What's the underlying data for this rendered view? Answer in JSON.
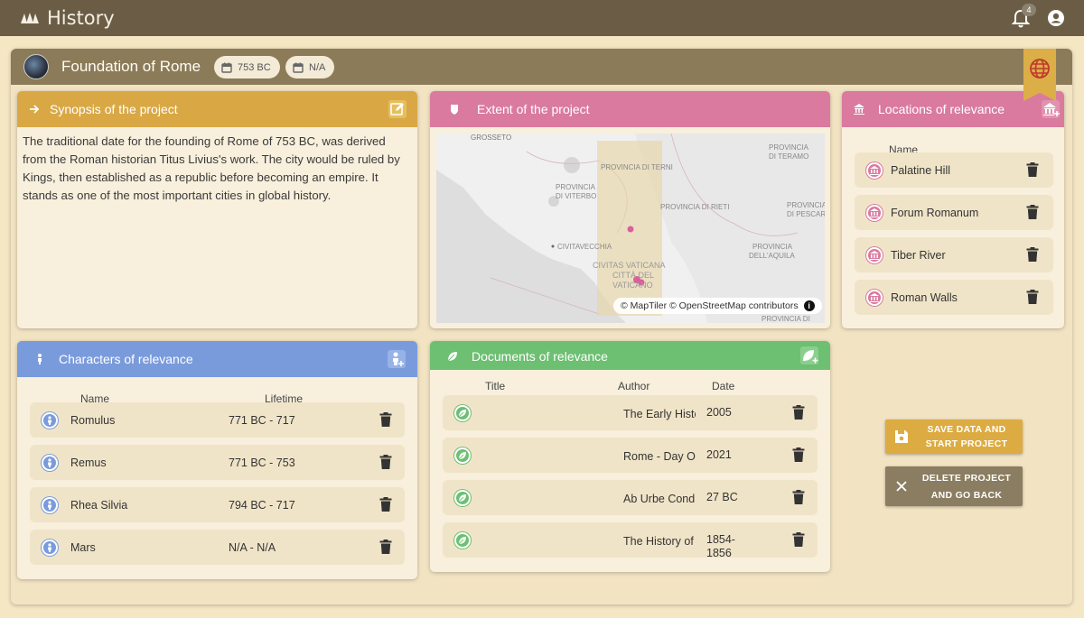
{
  "app": {
    "title": "History",
    "notification_count": "4"
  },
  "project": {
    "title": "Foundation of Rome",
    "start_date": "753 BC",
    "end_date": "N/A"
  },
  "synopsis": {
    "title": "Synopsis of the project",
    "text": "The traditional date for the founding of Rome of 753 BC, was derived from the Roman historian Titus Livius's work. The city would be ruled by Kings, then established as a republic before becoming an empire. It stands as one of the most important cities in global history."
  },
  "extent": {
    "title": "Extent of the project",
    "map_labels": {
      "grosseto": "GROSSETO",
      "terni": "PROVINCIA DI TERNI",
      "teramo_1": "PROVINCIA",
      "teramo_2": "DI TERAMO",
      "viterbo_1": "PROVINCIA",
      "viterbo_2": "DI VITERBO",
      "rieti": "PROVINCIA DI RIETI",
      "pescara_1": "PROVINCIA",
      "pescara_2": "DI PESCAR",
      "civitavecchia": "CIVITAVECCHIA",
      "aquila_1": "PROVINCIA",
      "aquila_2": "DELL'AQUILA",
      "vaticana_1": "CIVITAS VATICANA",
      "vaticana_2": "CITTÀ DEL",
      "vaticana_3": "VATICANO",
      "bottom": "PROVINCIA DI"
    },
    "attribution": "© MapTiler © OpenStreetMap contributors",
    "info_glyph": "i"
  },
  "locations": {
    "title": "Locations of relevance",
    "column_name": "Name",
    "items": [
      {
        "name": "Palatine Hill"
      },
      {
        "name": "Forum Romanum"
      },
      {
        "name": "Tiber River"
      },
      {
        "name": "Roman Walls"
      }
    ]
  },
  "characters": {
    "title": "Characters of relevance",
    "column_name": "Name",
    "column_lifetime": "Lifetime",
    "items": [
      {
        "name": "Romulus",
        "lifetime": "771 BC - 717"
      },
      {
        "name": "Remus",
        "lifetime": "771 BC - 753"
      },
      {
        "name": "Rhea Silvia",
        "lifetime": "794 BC - 717"
      },
      {
        "name": "Mars",
        "lifetime": "N/A - N/A"
      }
    ]
  },
  "documents": {
    "title": "Documents of relevance",
    "column_title": "Title",
    "column_author": "Author",
    "column_date": "Date",
    "items": [
      {
        "author": "The Early Histo",
        "date_1": "2005",
        "date_2": ""
      },
      {
        "author": "Rome - Day Or",
        "date_1": "2021",
        "date_2": ""
      },
      {
        "author": "Ab Urbe Condi",
        "date_1": "27 BC",
        "date_2": ""
      },
      {
        "author": "The History of",
        "date_1": "1854-",
        "date_2": "1856"
      }
    ]
  },
  "actions": {
    "save_line1": "SAVE DATA AND",
    "save_line2": "START PROJECT",
    "delete_line1": "DELETE PROJECT",
    "delete_line2": "AND GO BACK"
  },
  "colors": {
    "topbar": "#6b5d45",
    "synopsis": "#d9a845",
    "extent": "#d97a9e",
    "characters": "#7a9bdb",
    "documents": "#6dbf72",
    "save": "#dcab42",
    "delete": "#8a7d61"
  }
}
